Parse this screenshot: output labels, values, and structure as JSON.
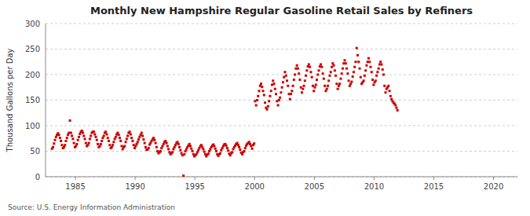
{
  "chart_data": {
    "type": "scatter",
    "title": "Monthly New Hampshire Regular Gasoline Retail Sales by Refiners",
    "ylabel": "Thousand Gallons per Day",
    "source": "Source: U.S. Energy Information Administration",
    "color": "#cc0000",
    "marker": "square",
    "grid": true,
    "xlim": [
      1982.5,
      2022
    ],
    "xticks": [
      1985,
      1990,
      1995,
      2000,
      2005,
      2010,
      2015,
      2020
    ],
    "ylim": [
      0,
      300
    ],
    "yticks": [
      0,
      50,
      100,
      150,
      200,
      250,
      300
    ],
    "x": [
      1983.0416666666667,
      1983.125,
      1983.2083333333333,
      1983.2916666666667,
      1983.375,
      1983.4583333333333,
      1983.5416666666667,
      1983.625,
      1983.7083333333333,
      1983.7916666666667,
      1983.875,
      1983.9583333333333,
      1984.0416666666667,
      1984.125,
      1984.2083333333333,
      1984.2916666666667,
      1984.375,
      1984.4583333333333,
      1984.5416666666667,
      1984.625,
      1984.7083333333333,
      1984.7916666666667,
      1984.875,
      1984.9583333333333,
      1985.0416666666667,
      1985.125,
      1985.2083333333333,
      1985.2916666666667,
      1985.375,
      1985.4583333333333,
      1985.5416666666667,
      1985.625,
      1985.7083333333333,
      1985.7916666666667,
      1985.875,
      1985.9583333333333,
      1986.0416666666667,
      1986.125,
      1986.2083333333333,
      1986.2916666666667,
      1986.375,
      1986.4583333333333,
      1986.5416666666667,
      1986.625,
      1986.7083333333333,
      1986.7916666666667,
      1986.875,
      1986.9583333333333,
      1987.0416666666667,
      1987.125,
      1987.2083333333333,
      1987.2916666666667,
      1987.375,
      1987.4583333333333,
      1987.5416666666667,
      1987.625,
      1987.7083333333333,
      1987.7916666666667,
      1987.875,
      1987.9583333333333,
      1988.0416666666667,
      1988.125,
      1988.2083333333333,
      1988.2916666666667,
      1988.375,
      1988.4583333333333,
      1988.5416666666667,
      1988.625,
      1988.7083333333333,
      1988.7916666666667,
      1988.875,
      1988.9583333333333,
      1989.0416666666667,
      1989.125,
      1989.2083333333333,
      1989.2916666666667,
      1989.375,
      1989.4583333333333,
      1989.5416666666667,
      1989.625,
      1989.7083333333333,
      1989.7916666666667,
      1989.875,
      1989.9583333333333,
      1990.0416666666667,
      1990.125,
      1990.2083333333333,
      1990.2916666666667,
      1990.375,
      1990.4583333333333,
      1990.5416666666667,
      1990.625,
      1990.7083333333333,
      1990.7916666666667,
      1990.875,
      1990.9583333333333,
      1991.0416666666667,
      1991.125,
      1991.2083333333333,
      1991.2916666666667,
      1991.375,
      1991.4583333333333,
      1991.5416666666667,
      1991.625,
      1991.7083333333333,
      1991.7916666666667,
      1991.875,
      1991.9583333333333,
      1992.0416666666667,
      1992.125,
      1992.2083333333333,
      1992.2916666666667,
      1992.375,
      1992.4583333333333,
      1992.5416666666667,
      1992.625,
      1992.7083333333333,
      1992.7916666666667,
      1992.875,
      1992.9583333333333,
      1993.0416666666667,
      1993.125,
      1993.2083333333333,
      1993.2916666666667,
      1993.375,
      1993.4583333333333,
      1993.5416666666667,
      1993.625,
      1993.7083333333333,
      1993.7916666666667,
      1993.875,
      1993.9583333333333,
      1994.0416666666667,
      1994.125,
      1994.2083333333333,
      1994.2916666666667,
      1994.375,
      1994.4583333333333,
      1994.5416666666667,
      1994.625,
      1994.7083333333333,
      1994.7916666666667,
      1994.875,
      1994.9583333333333,
      1995.0416666666667,
      1995.125,
      1995.2083333333333,
      1995.2916666666667,
      1995.375,
      1995.4583333333333,
      1995.5416666666667,
      1995.625,
      1995.7083333333333,
      1995.7916666666667,
      1995.875,
      1995.9583333333333,
      1996.0416666666667,
      1996.125,
      1996.2083333333333,
      1996.2916666666667,
      1996.375,
      1996.4583333333333,
      1996.5416666666667,
      1996.625,
      1996.7083333333333,
      1996.7916666666667,
      1996.875,
      1996.9583333333333,
      1997.0416666666667,
      1997.125,
      1997.2083333333333,
      1997.2916666666667,
      1997.375,
      1997.4583333333333,
      1997.5416666666667,
      1997.625,
      1997.7083333333333,
      1997.7916666666667,
      1997.875,
      1997.9583333333333,
      1998.0416666666667,
      1998.125,
      1998.2083333333333,
      1998.2916666666667,
      1998.375,
      1998.4583333333333,
      1998.5416666666667,
      1998.625,
      1998.7083333333333,
      1998.7916666666667,
      1998.875,
      1998.9583333333333,
      1999.0416666666667,
      1999.125,
      1999.2083333333333,
      1999.2916666666667,
      1999.375,
      1999.4583333333333,
      1999.5416666666667,
      1999.625,
      1999.7083333333333,
      1999.7916666666667,
      1999.875,
      1999.9583333333333,
      2000.0416666666667,
      2000.125,
      2000.2083333333333,
      2000.2916666666667,
      2000.375,
      2000.4583333333333,
      2000.5416666666667,
      2000.625,
      2000.7083333333333,
      2000.7916666666667,
      2000.875,
      2000.9583333333333,
      2001.0416666666667,
      2001.125,
      2001.2083333333333,
      2001.2916666666667,
      2001.375,
      2001.4583333333333,
      2001.5416666666667,
      2001.625,
      2001.7083333333333,
      2001.7916666666667,
      2001.875,
      2001.9583333333333,
      2002.0416666666667,
      2002.125,
      2002.2083333333333,
      2002.2916666666667,
      2002.375,
      2002.4583333333333,
      2002.5416666666667,
      2002.625,
      2002.7083333333333,
      2002.7916666666667,
      2002.875,
      2002.9583333333333,
      2003.0416666666667,
      2003.125,
      2003.2083333333333,
      2003.2916666666667,
      2003.375,
      2003.4583333333333,
      2003.5416666666667,
      2003.625,
      2003.7083333333333,
      2003.7916666666667,
      2003.875,
      2003.9583333333333,
      2004.0416666666667,
      2004.125,
      2004.2083333333333,
      2004.2916666666667,
      2004.375,
      2004.4583333333333,
      2004.5416666666667,
      2004.625,
      2004.7083333333333,
      2004.7916666666667,
      2004.875,
      2004.9583333333333,
      2005.0416666666667,
      2005.125,
      2005.2083333333333,
      2005.2916666666667,
      2005.375,
      2005.4583333333333,
      2005.5416666666667,
      2005.625,
      2005.7083333333333,
      2005.7916666666667,
      2005.875,
      2005.9583333333333,
      2006.0416666666667,
      2006.125,
      2006.2083333333333,
      2006.2916666666667,
      2006.375,
      2006.4583333333333,
      2006.5416666666667,
      2006.625,
      2006.7083333333333,
      2006.7916666666667,
      2006.875,
      2006.9583333333333,
      2007.0416666666667,
      2007.125,
      2007.2083333333333,
      2007.2916666666667,
      2007.375,
      2007.4583333333333,
      2007.5416666666667,
      2007.625,
      2007.7083333333333,
      2007.7916666666667,
      2007.875,
      2007.9583333333333,
      2008.0416666666667,
      2008.125,
      2008.2083333333333,
      2008.2916666666667,
      2008.375,
      2008.4583333333333,
      2008.5416666666667,
      2008.625,
      2008.7083333333333,
      2008.7916666666667,
      2008.875,
      2008.9583333333333,
      2009.0416666666667,
      2009.125,
      2009.2083333333333,
      2009.2916666666667,
      2009.375,
      2009.4583333333333,
      2009.5416666666667,
      2009.625,
      2009.7083333333333,
      2009.7916666666667,
      2009.875,
      2009.9583333333333,
      2010.0416666666667,
      2010.125,
      2010.2083333333333,
      2010.2916666666667,
      2010.375,
      2010.4583333333333,
      2010.5416666666667,
      2010.625,
      2010.7083333333333,
      2010.7916666666667,
      2010.875,
      2010.9583333333333,
      2011.0416666666667,
      2011.125,
      2011.2083333333333,
      2011.2916666666667,
      2011.375,
      2011.4583333333333,
      2011.5416666666667,
      2011.625,
      2011.7083333333333,
      2011.7916666666667,
      2011.875,
      2011.9583333333333
    ],
    "values": [
      55,
      58,
      65,
      72,
      78,
      82,
      85,
      82,
      76,
      70,
      62,
      56,
      58,
      62,
      70,
      76,
      82,
      86,
      110,
      86,
      80,
      74,
      66,
      58,
      60,
      64,
      72,
      78,
      84,
      88,
      90,
      86,
      80,
      74,
      66,
      60,
      62,
      66,
      74,
      80,
      86,
      88,
      88,
      83,
      78,
      72,
      64,
      58,
      60,
      64,
      70,
      76,
      80,
      86,
      88,
      83,
      76,
      70,
      62,
      56,
      58,
      62,
      68,
      74,
      78,
      83,
      86,
      82,
      76,
      70,
      60,
      54,
      58,
      60,
      68,
      74,
      80,
      86,
      88,
      83,
      76,
      70,
      62,
      56,
      60,
      64,
      68,
      73,
      78,
      82,
      86,
      80,
      73,
      66,
      58,
      53,
      53,
      56,
      63,
      66,
      70,
      73,
      76,
      72,
      66,
      58,
      50,
      46,
      48,
      50,
      56,
      60,
      64,
      68,
      70,
      66,
      60,
      54,
      48,
      44,
      46,
      48,
      54,
      58,
      62,
      66,
      68,
      64,
      58,
      52,
      46,
      42,
      2,
      44,
      50,
      54,
      58,
      61,
      64,
      60,
      55,
      50,
      44,
      40,
      42,
      44,
      48,
      52,
      56,
      60,
      62,
      58,
      54,
      49,
      44,
      40,
      43,
      45,
      50,
      54,
      58,
      61,
      63,
      60,
      55,
      50,
      44,
      41,
      44,
      46,
      52,
      56,
      60,
      63,
      64,
      61,
      56,
      51,
      45,
      42,
      46,
      48,
      54,
      58,
      61,
      64,
      66,
      62,
      58,
      53,
      47,
      44,
      48,
      50,
      56,
      61,
      64,
      66,
      68,
      64,
      60,
      55,
      62,
      65,
      148,
      140,
      150,
      158,
      168,
      178,
      182,
      176,
      168,
      160,
      145,
      135,
      132,
      138,
      148,
      158,
      168,
      180,
      188,
      182,
      172,
      162,
      148,
      140,
      150,
      155,
      165,
      175,
      185,
      195,
      205,
      198,
      188,
      178,
      162,
      152,
      162,
      168,
      178,
      190,
      200,
      212,
      218,
      212,
      202,
      190,
      175,
      165,
      172,
      178,
      188,
      198,
      208,
      216,
      220,
      215,
      205,
      195,
      178,
      168,
      175,
      180,
      190,
      200,
      208,
      216,
      220,
      215,
      202,
      192,
      178,
      168,
      172,
      178,
      188,
      198,
      205,
      215,
      222,
      218,
      208,
      198,
      182,
      172,
      178,
      182,
      192,
      202,
      212,
      222,
      228,
      222,
      212,
      202,
      188,
      178,
      182,
      186,
      196,
      205,
      215,
      225,
      252,
      238,
      225,
      212,
      195,
      182,
      185,
      188,
      198,
      208,
      218,
      225,
      232,
      225,
      215,
      205,
      190,
      180,
      185,
      188,
      198,
      205,
      212,
      220,
      225,
      220,
      210,
      200,
      178,
      165,
      172,
      175,
      178,
      168,
      158,
      152,
      148,
      145,
      143,
      140,
      135,
      130
    ]
  }
}
